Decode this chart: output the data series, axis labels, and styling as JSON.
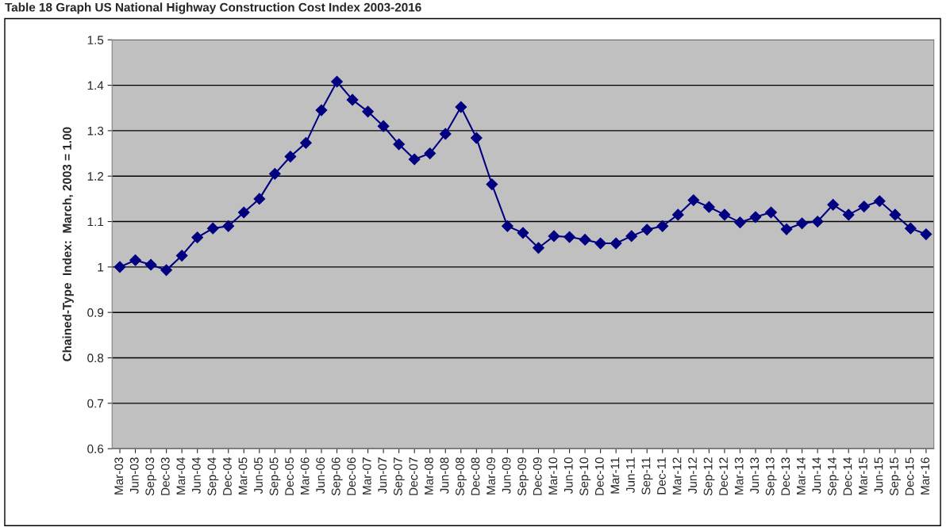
{
  "chart_data": {
    "type": "line",
    "title": "Table 18 Graph US National Highway Construction Cost Index 2003-2016",
    "ylabel": "Chained-Type  Index:  March, 2003 = 1.00",
    "categories": [
      "Mar-03",
      "Jun-03",
      "Sep-03",
      "Dec-03",
      "Mar-04",
      "Jun-04",
      "Sep-04",
      "Dec-04",
      "Mar-05",
      "Jun-05",
      "Sep-05",
      "Dec-05",
      "Mar-06",
      "Jun-06",
      "Sep-06",
      "Dec-06",
      "Mar-07",
      "Jun-07",
      "Sep-07",
      "Dec-07",
      "Mar-08",
      "Jun-08",
      "Sep-08",
      "Dec-08",
      "Mar-09",
      "Jun-09",
      "Sep-09",
      "Dec-09",
      "Mar-10",
      "Jun-10",
      "Sep-10",
      "Dec-10",
      "Mar-11",
      "Jun-11",
      "Sep-11",
      "Dec-11",
      "Mar-12",
      "Jun-12",
      "Sep-12",
      "Dec-12",
      "Mar-13",
      "Jun-13",
      "Sep-13",
      "Dec-13",
      "Mar-14",
      "Jun-14",
      "Sep-14",
      "Dec-14",
      "Mar-15",
      "Jun-15",
      "Sep-15",
      "Dec-15",
      "Mar-16"
    ],
    "series": [
      {
        "color": "#000080",
        "values": [
          1.0,
          1.015,
          1.005,
          0.993,
          1.025,
          1.065,
          1.085,
          1.09,
          1.12,
          1.15,
          1.205,
          1.243,
          1.273,
          1.345,
          1.408,
          1.368,
          1.342,
          1.31,
          1.27,
          1.237,
          1.25,
          1.293,
          1.352,
          1.284,
          1.182,
          1.09,
          1.075,
          1.042,
          1.068,
          1.066,
          1.06,
          1.052,
          1.052,
          1.068,
          1.082,
          1.09,
          1.115,
          1.147,
          1.132,
          1.115,
          1.098,
          1.11,
          1.12,
          1.083,
          1.096,
          1.1,
          1.137,
          1.115,
          1.133,
          1.145,
          1.115,
          1.085,
          1.072
        ]
      }
    ],
    "ylim": [
      0.6,
      1.5
    ],
    "yticks": [
      0.6,
      0.7,
      0.8,
      0.9,
      1,
      1.1,
      1.2,
      1.3,
      1.4,
      1.5
    ],
    "grid": "y",
    "marker": "diamond",
    "line_style": "solid"
  }
}
